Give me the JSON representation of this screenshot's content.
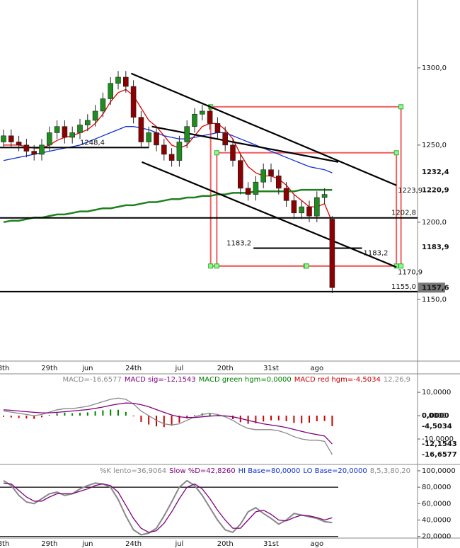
{
  "chart_data": [
    {
      "type": "candlestick",
      "categories": [
        "8th",
        null,
        null,
        null,
        null,
        null,
        "29th",
        null,
        null,
        null,
        null,
        "jun",
        null,
        null,
        null,
        null,
        null,
        "24th",
        null,
        null,
        null,
        null,
        null,
        "jul",
        null,
        null,
        null,
        null,
        null,
        "20th",
        null,
        null,
        null,
        null,
        null,
        "31st",
        null,
        null,
        null,
        null,
        null,
        "ago",
        null,
        null
      ],
      "open": [
        1252,
        1256,
        1252,
        1250,
        1246,
        1244,
        1250,
        1258,
        1262,
        1255,
        1258,
        1263,
        1266,
        1272,
        1280,
        1290,
        1294,
        1288,
        1268,
        1252,
        1258,
        1250,
        1244,
        1240,
        1252,
        1262,
        1270,
        1272,
        1264,
        1258,
        1250,
        1240,
        1222,
        1218,
        1226,
        1234,
        1230,
        1222,
        1214,
        1206,
        1210,
        1204,
        1216,
        1202
      ],
      "high": [
        1260,
        1260,
        1256,
        1254,
        1250,
        1254,
        1262,
        1266,
        1266,
        1262,
        1267,
        1270,
        1276,
        1284,
        1294,
        1298,
        1298,
        1292,
        1272,
        1262,
        1262,
        1254,
        1248,
        1256,
        1266,
        1274,
        1276,
        1276,
        1268,
        1262,
        1254,
        1244,
        1226,
        1230,
        1238,
        1238,
        1234,
        1226,
        1218,
        1214,
        1214,
        1220,
        1222,
        1204
      ],
      "low": [
        1248,
        1248,
        1246,
        1242,
        1240,
        1240,
        1246,
        1254,
        1251,
        1251,
        1254,
        1259,
        1262,
        1268,
        1276,
        1286,
        1284,
        1264,
        1248,
        1248,
        1246,
        1240,
        1236,
        1236,
        1248,
        1258,
        1266,
        1260,
        1254,
        1246,
        1236,
        1218,
        1214,
        1214,
        1222,
        1226,
        1218,
        1210,
        1202,
        1202,
        1200,
        1200,
        1212,
        1154
      ],
      "close": [
        1256,
        1252,
        1250,
        1246,
        1244,
        1250,
        1258,
        1262,
        1255,
        1258,
        1263,
        1266,
        1272,
        1280,
        1290,
        1294,
        1288,
        1268,
        1252,
        1258,
        1250,
        1244,
        1240,
        1252,
        1262,
        1270,
        1272,
        1264,
        1258,
        1250,
        1240,
        1222,
        1218,
        1226,
        1234,
        1230,
        1222,
        1214,
        1206,
        1210,
        1204,
        1216,
        1218,
        1157.6
      ],
      "up_color": "#1e8c1e",
      "down_color": "#8b0000",
      "ylim": [
        1110,
        1344
      ],
      "yticks": [
        {
          "value": 1300,
          "label": "1300,0"
        },
        {
          "value": 1250,
          "label": "1250,0"
        },
        {
          "value": 1200,
          "label": "1200,0"
        },
        {
          "value": 1150,
          "label": "1150,0"
        }
      ],
      "overlays": [
        {
          "color": "#e00000",
          "values": [
            1250,
            1250,
            1250,
            1249,
            1248,
            1248,
            1250,
            1253,
            1255,
            1256,
            1258,
            1260,
            1264,
            1270,
            1278,
            1284,
            1286,
            1282,
            1274,
            1266,
            1262,
            1256,
            1250,
            1248,
            1250,
            1256,
            1262,
            1264,
            1264,
            1260,
            1254,
            1244,
            1236,
            1232,
            1230,
            1230,
            1228,
            1224,
            1218,
            1214,
            1210,
            1210,
            1212,
            1200
          ]
        },
        {
          "color": "#1030d0",
          "values": [
            1240,
            1241,
            1242,
            1243,
            1244,
            1245,
            1246,
            1247,
            1248,
            1249,
            1250,
            1252,
            1254,
            1256,
            1258,
            1260,
            1262,
            1262,
            1261,
            1260,
            1258,
            1256,
            1255,
            1254,
            1254,
            1255,
            1256,
            1257,
            1258,
            1258,
            1256,
            1254,
            1252,
            1250,
            1248,
            1246,
            1244,
            1242,
            1240,
            1238,
            1236,
            1235,
            1234,
            1232
          ]
        },
        {
          "color": "#208020",
          "values": [
            1200,
            1201,
            1201,
            1202,
            1203,
            1203,
            1204,
            1205,
            1205,
            1206,
            1207,
            1207,
            1208,
            1209,
            1209,
            1210,
            1211,
            1211,
            1212,
            1213,
            1213,
            1214,
            1215,
            1215,
            1216,
            1216,
            1217,
            1217,
            1218,
            1218,
            1219,
            1219,
            1219,
            1220,
            1220,
            1220,
            1220,
            1220,
            1220,
            1221,
            1221,
            1221,
            1221,
            1220.9
          ]
        }
      ],
      "trendlines": [
        {
          "from": [
            16.7,
            1296.4
          ],
          "to": [
            51.4,
            1223.9
          ],
          "label": "1223,9"
        },
        {
          "from": [
            18.1,
            1239
          ],
          "to": [
            51.4,
            1170.9
          ],
          "label": "1170,9"
        },
        {
          "from": [
            19.4,
            1262
          ],
          "to": [
            43.8,
            1239
          ]
        }
      ],
      "levels": [
        {
          "from": -0.5,
          "to": 54.2,
          "value": 1202.8,
          "label": "1202,8"
        },
        {
          "from": -0.5,
          "to": 54.2,
          "value": 1155.0,
          "label": "1155,0"
        },
        {
          "from": 32.7,
          "to": 46.9,
          "value": 1183.2,
          "label": "1183,2"
        },
        {
          "from": -0.5,
          "to": 19,
          "value": 1248.4,
          "label": "1248,4"
        }
      ],
      "boxes": [
        {
          "x": [
            27.1,
            52
          ],
          "y": [
            1171.6,
            1274.8
          ]
        },
        {
          "x": [
            27.9,
            51.4
          ],
          "y": [
            1171.6,
            1245
          ]
        }
      ],
      "price_tags": [
        {
          "value": 1232.4,
          "label": "1232,4",
          "color": "#1030d0"
        },
        {
          "value": 1220.9,
          "label": "1220,9",
          "color": "#208020"
        },
        {
          "value": 1183.9,
          "label": "1183,9",
          "color": "#8b0000"
        },
        {
          "value": 1157.6,
          "label": "1157,6",
          "color": "#777777"
        }
      ]
    },
    {
      "type": "macd",
      "legend": [
        {
          "text": "MACD=-16,6577",
          "color": "#888888"
        },
        {
          "text": "MACD sig=-12,1543",
          "color": "#800080"
        },
        {
          "text": "MACD green hgm=0,0000",
          "color": "#008000"
        },
        {
          "text": "MACD red hgm=-4,5034",
          "color": "#cc0000"
        },
        {
          "text": "12,26,9",
          "color": "#888888"
        }
      ],
      "ylim": [
        -20.6,
        17.3
      ],
      "yticks": [
        {
          "value": 10,
          "label": "10,0000"
        },
        {
          "value": 0,
          "label": "0,0000"
        },
        {
          "value": -10,
          "label": "-10,0000"
        }
      ],
      "macd": {
        "color": "#888888",
        "values": [
          2,
          1.5,
          1,
          0.5,
          0,
          0.5,
          1.5,
          2.5,
          3,
          3,
          3.5,
          4,
          5,
          6,
          7,
          7.5,
          7,
          5,
          2,
          0,
          -2,
          -3.5,
          -4,
          -3.5,
          -2,
          -0.5,
          0.5,
          1,
          0.5,
          -0.5,
          -2,
          -4,
          -5.5,
          -6,
          -6,
          -6,
          -6.5,
          -7.5,
          -9,
          -10,
          -10.5,
          -10.5,
          -11,
          -16.6577
        ]
      },
      "signal": {
        "color": "#800080",
        "values": [
          2.5,
          2.3,
          2,
          1.7,
          1.4,
          1.2,
          1.2,
          1.4,
          1.7,
          2,
          2.3,
          2.6,
          3.1,
          3.7,
          4.4,
          5,
          5.4,
          5.3,
          4.7,
          3.8,
          2.6,
          1.4,
          0.3,
          -0.5,
          -0.8,
          -0.8,
          -0.5,
          -0.2,
          0,
          -0.1,
          -0.5,
          -1.2,
          -2,
          -2.8,
          -3.5,
          -4,
          -4.5,
          -5.1,
          -5.9,
          -6.7,
          -7.5,
          -8.1,
          -8.7,
          -12.1543
        ]
      },
      "histogram": {
        "up_color": "#008000",
        "down_color": "#cc0000",
        "values": [
          -0.5,
          -0.8,
          -1,
          -1.2,
          -1.4,
          -0.7,
          0.3,
          1.1,
          1.3,
          1,
          1.2,
          1.4,
          1.9,
          2.3,
          2.6,
          2.5,
          1.6,
          -0.3,
          -2.7,
          -3.8,
          -4.6,
          -4.9,
          -4.3,
          -3,
          -1.2,
          0.3,
          1,
          1.2,
          0.5,
          -0.4,
          -1.5,
          -2.8,
          -3.5,
          -3.2,
          -2.5,
          -2,
          -2,
          -2.4,
          -3.1,
          -3.3,
          -3,
          -2.4,
          -2.3,
          -4.5034
        ]
      },
      "price_tags": [
        {
          "value": 0,
          "label": "0,0000",
          "color": "#008000"
        },
        {
          "value": -4.5034,
          "label": "-4,5034",
          "color": "#cc0000"
        },
        {
          "value": -12.1543,
          "label": "-12,1543",
          "color": "#800080"
        },
        {
          "value": -16.6577,
          "label": "-16,6577",
          "color": "#888888"
        }
      ]
    },
    {
      "type": "stochastic",
      "legend": [
        {
          "text": "%K lento=36,9064",
          "color": "#888888"
        },
        {
          "text": "Slow %D=42,8260",
          "color": "#800080"
        },
        {
          "text": "HI Base=80,0000",
          "color": "#1030d0"
        },
        {
          "text": "LO Base=20,0000",
          "color": "#1030d0"
        },
        {
          "text": "8,5,3,80,20",
          "color": "#888888"
        }
      ],
      "ylim": [
        18,
        106
      ],
      "yticks": [
        {
          "value": 100,
          "label": "100,0000"
        },
        {
          "value": 80,
          "label": "80,0000"
        },
        {
          "value": 60,
          "label": "60,0000"
        },
        {
          "value": 40,
          "label": "40,0000"
        },
        {
          "value": 20,
          "label": "20,0000"
        }
      ],
      "levels": [
        80,
        20
      ],
      "k": {
        "color": "#888888",
        "values": [
          88,
          82,
          70,
          62,
          60,
          66,
          72,
          74,
          70,
          72,
          78,
          82,
          85,
          84,
          80,
          65,
          45,
          28,
          22,
          24,
          30,
          45,
          62,
          80,
          88,
          82,
          70,
          55,
          40,
          28,
          25,
          35,
          50,
          55,
          48,
          42,
          35,
          40,
          48,
          46,
          44,
          42,
          38,
          36.9064
        ]
      },
      "d": {
        "color": "#800080",
        "values": [
          85,
          84,
          76,
          68,
          63,
          63,
          68,
          72,
          72,
          72,
          75,
          78,
          82,
          84,
          82,
          74,
          58,
          42,
          30,
          25,
          27,
          36,
          50,
          66,
          80,
          84,
          78,
          66,
          52,
          40,
          30,
          30,
          40,
          50,
          52,
          47,
          40,
          39,
          43,
          46,
          45,
          43,
          40,
          42.826
        ]
      }
    }
  ]
}
